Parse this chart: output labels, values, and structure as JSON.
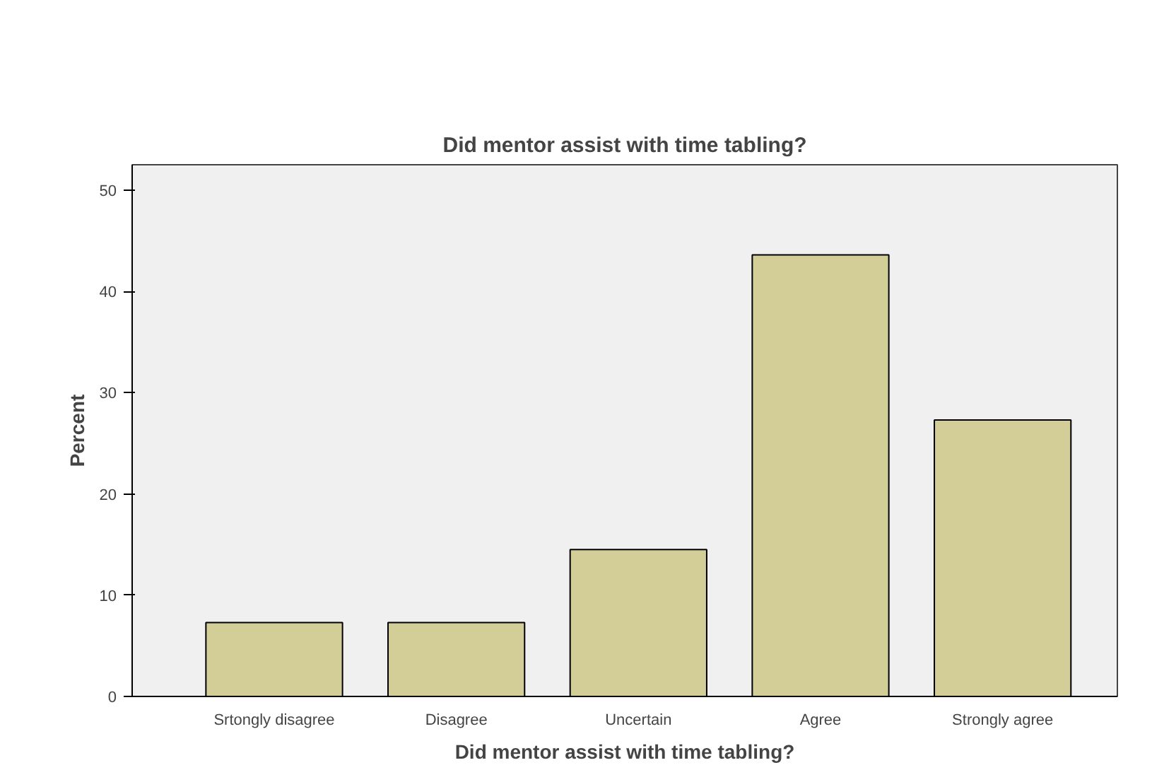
{
  "chart_data": {
    "type": "bar",
    "title": "Did mentor assist with time tabling?",
    "xlabel": "Did mentor assist with time tabling?",
    "ylabel": "Percent",
    "categories": [
      "Srtongly disagree",
      "Disagree",
      "Uncertain",
      "Agree",
      "Strongly agree"
    ],
    "values": [
      7.3,
      7.3,
      14.5,
      43.6,
      27.3
    ],
    "color": "#d3ce98",
    "ylim": [
      0,
      52.5
    ],
    "yticks": [
      0,
      10,
      20,
      30,
      40,
      50
    ],
    "grid": false
  }
}
